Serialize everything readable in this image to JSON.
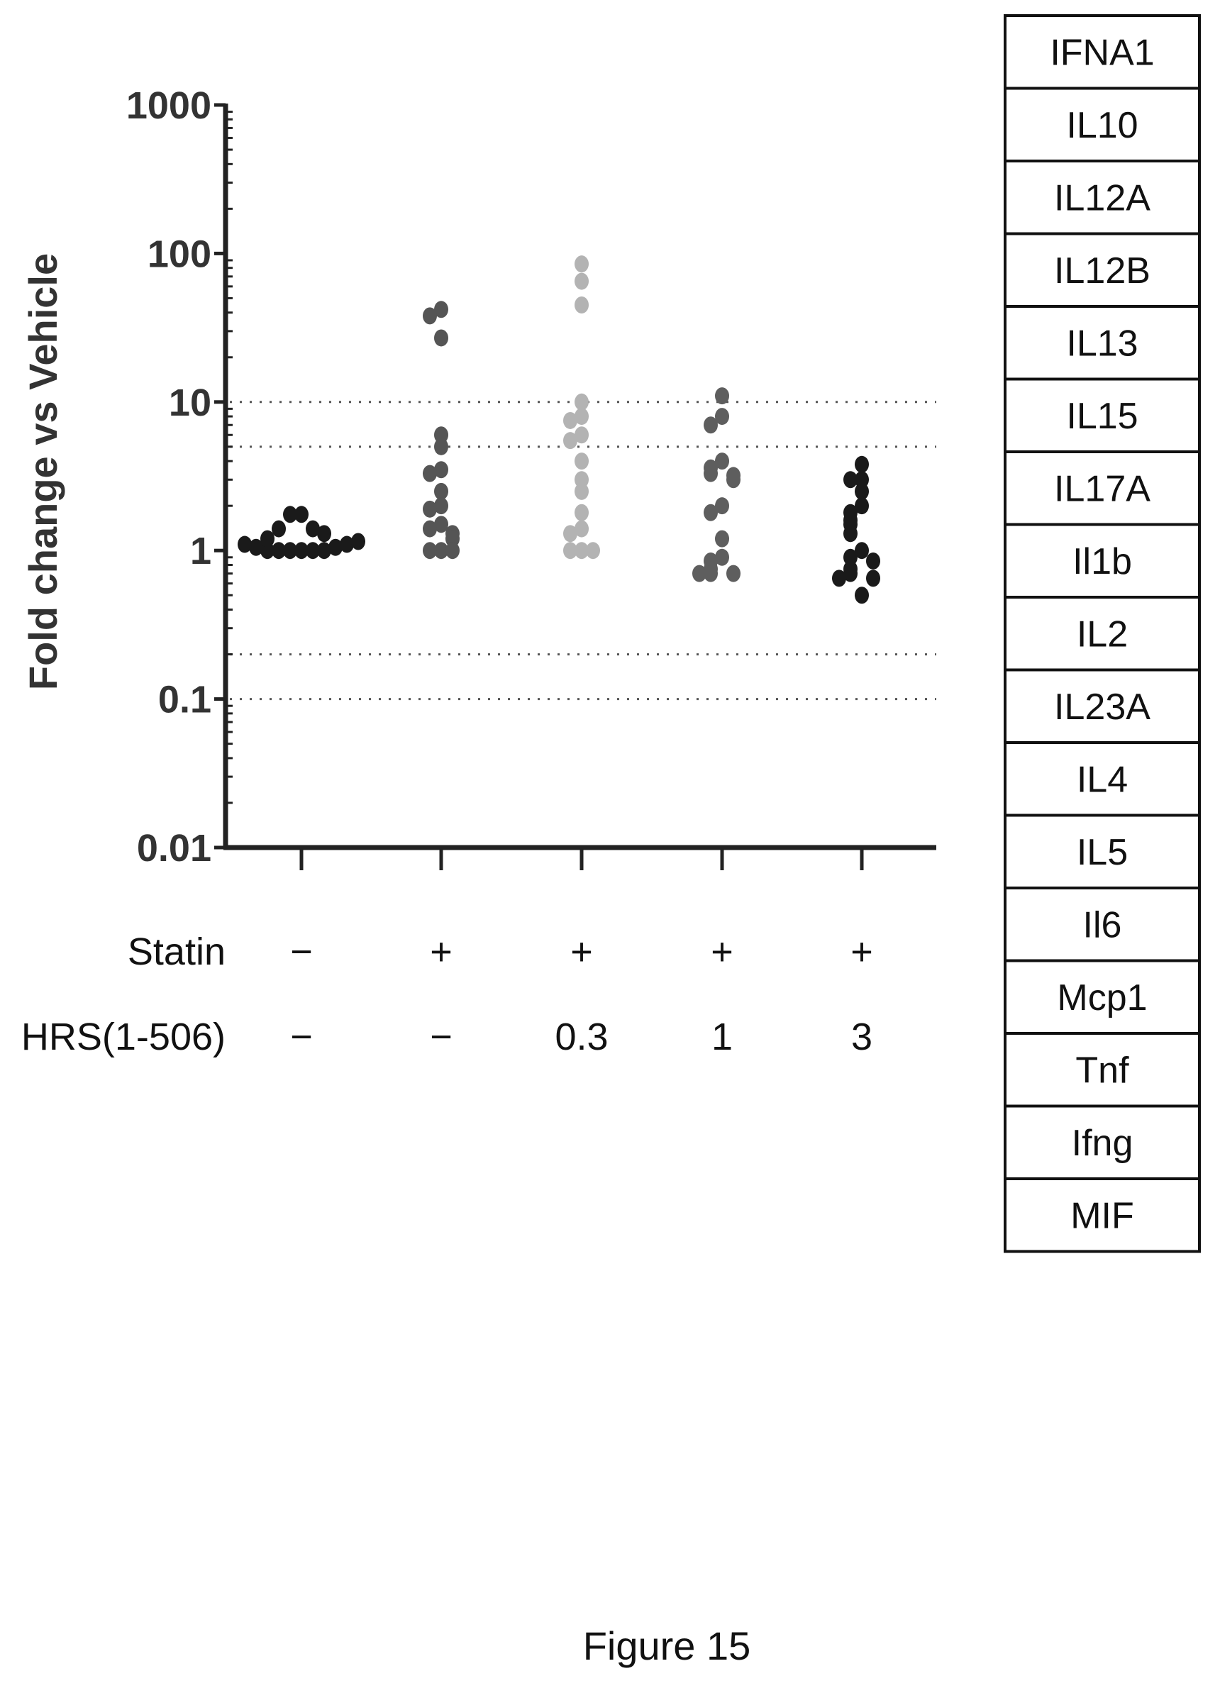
{
  "chart_data": {
    "type": "scatter",
    "ylabel": "Fold change vs Vehicle",
    "yscale": "log",
    "ylim": [
      0.01,
      1000
    ],
    "yticks": [
      "0.01",
      "0.1",
      "1",
      "10",
      "100",
      "1000"
    ],
    "reference_lines": [
      0.1,
      0.2,
      5,
      10
    ],
    "row_labels": [
      "Statin",
      "HRS(1-506)"
    ],
    "groups": [
      {
        "statin": "−",
        "hrs": "−",
        "color": "#1a1a1a",
        "values": [
          1.0,
          1.0,
          1.0,
          1.0,
          1.0,
          1.0,
          1.05,
          1.05,
          1.1,
          1.1,
          1.15,
          1.2,
          1.3,
          1.4,
          1.4,
          1.75,
          1.75
        ]
      },
      {
        "statin": "+",
        "hrs": "−",
        "color": "#555555",
        "values": [
          42,
          38,
          27,
          6.0,
          5.0,
          3.5,
          3.3,
          2.5,
          2.0,
          1.9,
          1.5,
          1.4,
          1.3,
          1.2,
          1.0,
          1.0,
          1.0
        ]
      },
      {
        "statin": "+",
        "hrs": "0.3",
        "color": "#b3b3b3",
        "values": [
          85,
          65,
          45,
          10,
          8.0,
          7.5,
          6.0,
          5.5,
          4.0,
          3.0,
          2.5,
          1.8,
          1.4,
          1.3,
          1.0,
          1.0,
          1.0
        ]
      },
      {
        "statin": "+",
        "hrs": "1",
        "color": "#5e5e5e",
        "values": [
          11,
          8.0,
          7.0,
          4.0,
          3.6,
          3.3,
          3.2,
          3.0,
          2.0,
          1.8,
          1.2,
          0.9,
          0.85,
          0.75,
          0.7,
          0.7,
          0.7
        ]
      },
      {
        "statin": "+",
        "hrs": "3",
        "color": "#1a1a1a",
        "values": [
          3.8,
          3.0,
          3.0,
          2.5,
          2.0,
          1.8,
          1.6,
          1.5,
          1.3,
          1.0,
          0.9,
          0.85,
          0.75,
          0.7,
          0.65,
          0.65,
          0.5
        ]
      }
    ]
  },
  "legend_table": {
    "genes": [
      "IFNA1",
      "IL10",
      "IL12A",
      "IL12B",
      "IL13",
      "IL15",
      "IL17A",
      "Il1b",
      "IL2",
      "IL23A",
      "IL4",
      "IL5",
      "Il6",
      "Mcp1",
      "Tnf",
      "Ifng",
      "MIF"
    ]
  },
  "caption": "Figure 15"
}
